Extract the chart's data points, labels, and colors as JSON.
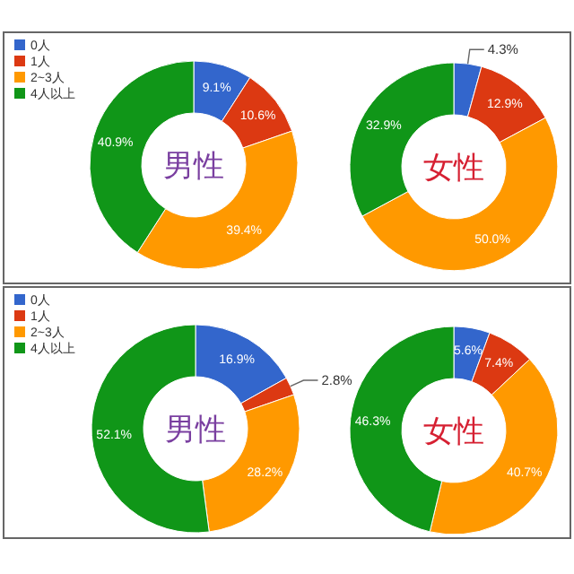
{
  "chart_data": [
    {
      "type": "donut",
      "title": "男性",
      "categories": [
        "0人",
        "1人",
        "2~3人",
        "4人以上"
      ],
      "values": [
        9.1,
        10.6,
        39.4,
        40.9
      ],
      "value_labels": [
        "9.1%",
        "10.6%",
        "39.4%",
        "40.9%"
      ],
      "colors": [
        "#3366cc",
        "#dc3912",
        "#ff9900",
        "#109618"
      ],
      "legend": "top left"
    },
    {
      "type": "donut",
      "title": "女性",
      "categories": [
        null,
        null,
        null,
        null
      ],
      "values": [
        4.3,
        12.9,
        50.0,
        32.9
      ],
      "value_labels": [
        "4.3%",
        "12.9%",
        "50.0%",
        "32.9%"
      ],
      "colors": [
        "#3366cc",
        "#dc3912",
        "#ff9900",
        "#109618"
      ]
    },
    {
      "type": "donut",
      "title": "男性",
      "categories": [
        "0人",
        "1人",
        "2~3人",
        "4人以上"
      ],
      "values": [
        16.9,
        2.8,
        28.2,
        52.1
      ],
      "value_labels": [
        "16.9%",
        "2.8%",
        "28.2%",
        "52.1%"
      ],
      "colors": [
        "#3366cc",
        "#dc3912",
        "#ff9900",
        "#109618"
      ],
      "legend": "top left"
    },
    {
      "type": "donut",
      "title": "女性",
      "categories": [
        null,
        null,
        null,
        null
      ],
      "values": [
        5.6,
        7.4,
        40.7,
        46.3
      ],
      "value_labels": [
        "5.6%",
        "7.4%",
        "40.7%",
        "46.3%"
      ],
      "colors": [
        "#3366cc",
        "#dc3912",
        "#ff9900",
        "#109618"
      ]
    }
  ]
}
